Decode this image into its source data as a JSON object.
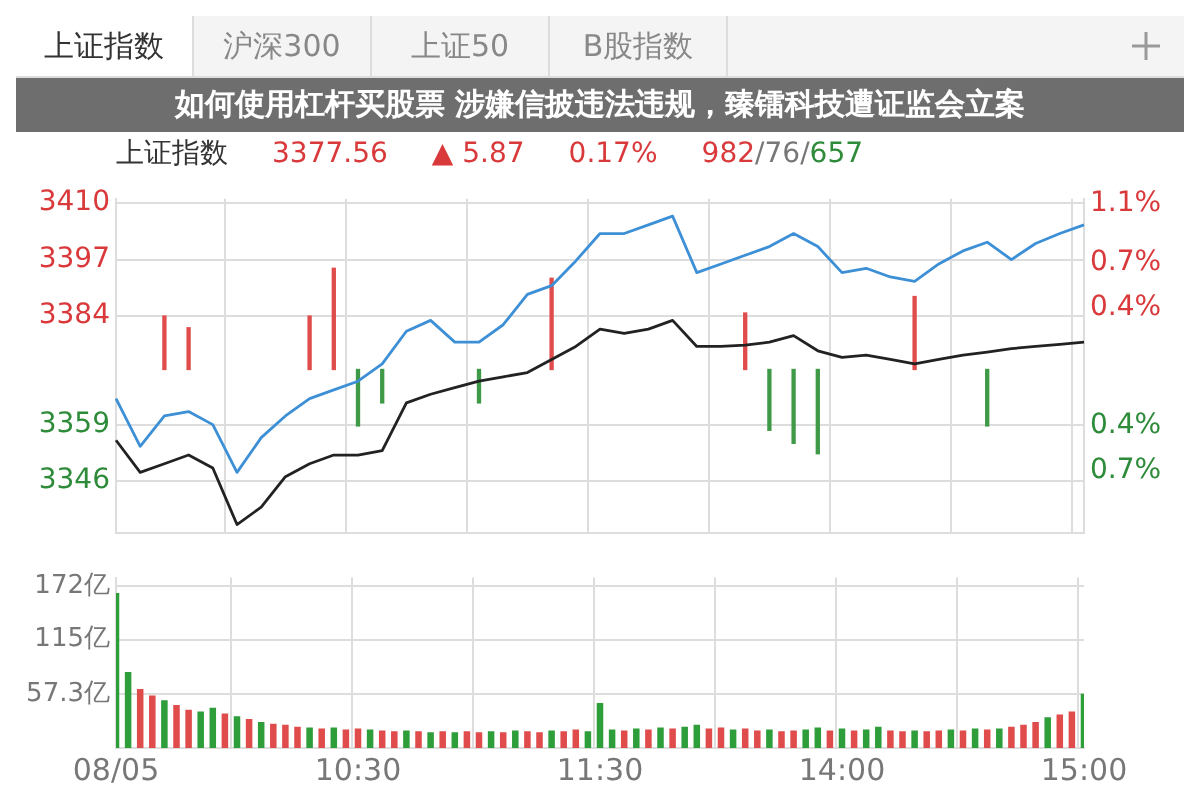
{
  "chart_data": [
    {
      "type": "line",
      "title": "上证指数",
      "subtitle": "如何使用杠杆买股票 涉嫌信披违法违规，臻镭科技遭证监会立案",
      "annotations": [
        "上证指数",
        "沪深300",
        "上证50",
        "B股指数",
        "3377.56",
        "▲ 5.87",
        "0.17%",
        "982/76/657"
      ],
      "categories": [
        null,
        null,
        null,
        null,
        null,
        null,
        null,
        null,
        null,
        null,
        null,
        null,
        null,
        null,
        null,
        null,
        null,
        null,
        null,
        null,
        null,
        null,
        null,
        null,
        null,
        null,
        null,
        null,
        null,
        null,
        null,
        null,
        null,
        null,
        null,
        null,
        null,
        null,
        null,
        null,
        null
      ],
      "ylim": [
        3334,
        3411
      ],
      "yticks": [
        3346,
        3359,
        3384,
        3397,
        3410
      ],
      "y2lim": [
        -1.12,
        1.13
      ],
      "y2ticks": [
        {
          "value": -0.7,
          "label": "0.7%"
        },
        {
          "value": -0.4,
          "label": "0.4%"
        },
        {
          "value": 0.4,
          "label": "0.4%"
        },
        {
          "value": 0.7,
          "label": "0.7%"
        },
        {
          "value": 1.1,
          "label": "1.1%"
        }
      ],
      "tick_labels": "y",
      "grid": true,
      "series": [
        {
          "type": "bar",
          "base": [
            null,
            null,
            3371.7,
            3371.7,
            null,
            null,
            null,
            null,
            3371.7,
            3371.7,
            3371.7,
            3371.7,
            null,
            null,
            null,
            3371.7,
            null,
            null,
            3371.7,
            null,
            null,
            null,
            null,
            null,
            null,
            null,
            3371.7,
            3371.7,
            3371.7,
            3371.7,
            null,
            null,
            null,
            3371.7,
            null,
            null,
            3371.7,
            null,
            null,
            null,
            null
          ],
          "values": [
            null,
            null,
            12.3,
            9.6,
            null,
            null,
            null,
            null,
            12.3,
            23.3,
            -13,
            -7.7,
            null,
            null,
            null,
            -7.7,
            null,
            null,
            21,
            null,
            null,
            null,
            null,
            null,
            null,
            null,
            13,
            -14,
            -17,
            -19.4,
            null,
            null,
            null,
            16.8,
            null,
            null,
            -13,
            null,
            null,
            null,
            null
          ],
          "colors": [
            "#e04b4b",
            "#e04b4b",
            "#e04b4b",
            "#e04b4b",
            "#e04b4b",
            "#e04b4b",
            "#e04b4b",
            "#e04b4b",
            "#e04b4b",
            "#e04b4b",
            "#3f9a48",
            "#3f9a48",
            "#e04b4b",
            "#e04b4b",
            "#e04b4b",
            "#3f9a48",
            "#e04b4b",
            "#e04b4b",
            "#e04b4b",
            "#e04b4b",
            "#e04b4b",
            "#e04b4b",
            "#e04b4b",
            "#e04b4b",
            "#e04b4b",
            "#e04b4b",
            "#e04b4b",
            "#3f9a48",
            "#3f9a48",
            "#3f9a48",
            "#e04b4b",
            "#e04b4b",
            "#e04b4b",
            "#e04b4b",
            "#e04b4b",
            "#e04b4b",
            "#3f9a48",
            "#e04b4b",
            "#e04b4b",
            "#e04b4b",
            "#e04b4b"
          ]
        },
        {
          "type": "line",
          "color": "#3d8fd6",
          "values": [
            3365,
            3354,
            3361,
            3362,
            3359,
            3348,
            3356,
            3361,
            3365,
            3367,
            3369,
            3373,
            3380.5,
            3383,
            3378,
            3378,
            3382,
            3389,
            3391,
            3396.7,
            3403,
            3403,
            3405,
            3407,
            3394,
            3396,
            3398,
            3400,
            3403,
            3400,
            3394,
            3395,
            3393,
            3392,
            3396,
            3399,
            3401,
            3397,
            3400.7,
            3403,
            3405
          ]
        },
        {
          "type": "line",
          "color": "#222222",
          "values": [
            3355.4,
            3348,
            3350,
            3352,
            3349,
            3336,
            3340,
            3347,
            3350,
            3352,
            3352,
            3353,
            3364,
            3366,
            3367.5,
            3369,
            3370,
            3371,
            3374,
            3377,
            3381,
            3380,
            3381,
            3383,
            3377,
            3377,
            3377.3,
            3378,
            3379.5,
            3376,
            3374.5,
            3375,
            3374,
            3373,
            3374,
            3375,
            3375.7,
            3376.5,
            3377,
            3377.5,
            3378
          ]
        }
      ]
    },
    {
      "type": "bar",
      "categories": [
        "08/05",
        null,
        null,
        null,
        null,
        null,
        null,
        null,
        null,
        null,
        null,
        null,
        null,
        null,
        null,
        null,
        null,
        null,
        null,
        null,
        "10:30",
        null,
        null,
        null,
        null,
        null,
        null,
        null,
        null,
        null,
        null,
        null,
        null,
        null,
        null,
        null,
        null,
        null,
        null,
        null,
        "11:30",
        null,
        null,
        null,
        null,
        null,
        null,
        null,
        null,
        null,
        null,
        null,
        null,
        null,
        null,
        null,
        null,
        null,
        null,
        null,
        "14:00",
        null,
        null,
        null,
        null,
        null,
        null,
        null,
        null,
        null,
        null,
        null,
        null,
        null,
        null,
        null,
        null,
        null,
        null,
        null,
        "15:00"
      ],
      "values": [
        164,
        80,
        62,
        55,
        50,
        45,
        40,
        38,
        42,
        36,
        33,
        30,
        27,
        25,
        24,
        22,
        21,
        20,
        21,
        19,
        20,
        19,
        18,
        17,
        18,
        17,
        16,
        17,
        16,
        17,
        16,
        17,
        16,
        18,
        17,
        16,
        18,
        17,
        19,
        17,
        47,
        19,
        18,
        20,
        19,
        21,
        20,
        22,
        24,
        20,
        21,
        19,
        20,
        18,
        19,
        17,
        18,
        19,
        21,
        18,
        20,
        18,
        19,
        22,
        18,
        17,
        18,
        17,
        18,
        19,
        18,
        20,
        19,
        20,
        22,
        24,
        27,
        32,
        35,
        38,
        57
      ],
      "colors": [
        "#2e9e3a",
        "#2e9e3a",
        "#e04b4b",
        "#e04b4b",
        "#2e9e3a",
        "#e04b4b",
        "#e04b4b",
        "#2e9e3a",
        "#2e9e3a",
        "#e04b4b",
        "#2e9e3a",
        "#e04b4b",
        "#2e9e3a",
        "#e04b4b",
        "#e04b4b",
        "#e04b4b",
        "#2e9e3a",
        "#e04b4b",
        "#2e9e3a",
        "#e04b4b",
        "#e04b4b",
        "#2e9e3a",
        "#e04b4b",
        "#e04b4b",
        "#2e9e3a",
        "#e04b4b",
        "#2e9e3a",
        "#e04b4b",
        "#2e9e3a",
        "#e04b4b",
        "#e04b4b",
        "#2e9e3a",
        "#e04b4b",
        "#2e9e3a",
        "#e04b4b",
        "#e04b4b",
        "#2e9e3a",
        "#e04b4b",
        "#e04b4b",
        "#2e9e3a",
        "#2e9e3a",
        "#2e9e3a",
        "#e04b4b",
        "#2e9e3a",
        "#e04b4b",
        "#2e9e3a",
        "#e04b4b",
        "#2e9e3a",
        "#2e9e3a",
        "#e04b4b",
        "#e04b4b",
        "#2e9e3a",
        "#e04b4b",
        "#e04b4b",
        "#2e9e3a",
        "#e04b4b",
        "#e04b4b",
        "#2e9e3a",
        "#2e9e3a",
        "#e04b4b",
        "#2e9e3a",
        "#e04b4b",
        "#2e9e3a",
        "#2e9e3a",
        "#e04b4b",
        "#e04b4b",
        "#2e9e3a",
        "#e04b4b",
        "#e04b4b",
        "#2e9e3a",
        "#e04b4b",
        "#2e9e3a",
        "#e04b4b",
        "#2e9e3a",
        "#e04b4b",
        "#e04b4b",
        "#e04b4b",
        "#2e9e3a",
        "#e04b4b",
        "#e04b4b",
        "#2e9e3a"
      ],
      "ylim": [
        0,
        181
      ],
      "yticks": [
        {
          "value": 57.3,
          "label": "57.3亿"
        },
        {
          "value": 115,
          "label": "115亿"
        },
        {
          "value": 172,
          "label": "172亿"
        }
      ],
      "grid": true
    }
  ]
}
